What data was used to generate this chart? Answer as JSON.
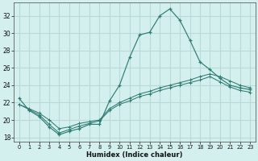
{
  "xlabel": "Humidex (Indice chaleur)",
  "bg_color": "#d4f0ee",
  "grid_color": "#b8dbd8",
  "line_color": "#2d7d72",
  "xlim": [
    -0.5,
    23.5
  ],
  "ylim": [
    17.5,
    33.5
  ],
  "yticks": [
    18,
    20,
    22,
    24,
    26,
    28,
    30,
    32
  ],
  "xticks": [
    0,
    1,
    2,
    3,
    4,
    5,
    6,
    7,
    8,
    9,
    10,
    11,
    12,
    13,
    14,
    15,
    16,
    17,
    18,
    19,
    20,
    21,
    22,
    23
  ],
  "line1_x": [
    0,
    1,
    2,
    3,
    4,
    5,
    6,
    7,
    8,
    9,
    10,
    11,
    12,
    13,
    14,
    15,
    16,
    17,
    18,
    19,
    20,
    21,
    22,
    23
  ],
  "line1_y": [
    22.5,
    21.1,
    20.4,
    19.2,
    18.3,
    18.7,
    19.0,
    19.5,
    19.5,
    22.2,
    24.0,
    27.2,
    29.8,
    30.1,
    32.0,
    32.8,
    31.5,
    29.2,
    26.7,
    25.8,
    24.8,
    24.0,
    23.7,
    23.5
  ],
  "line2_x": [
    0,
    1,
    2,
    3,
    4,
    5,
    6,
    7,
    8,
    9,
    10,
    11,
    12,
    13,
    14,
    15,
    16,
    17,
    18,
    19,
    20,
    21,
    22,
    23
  ],
  "line2_y": [
    21.8,
    21.2,
    20.6,
    19.5,
    18.5,
    18.9,
    19.3,
    19.6,
    19.9,
    21.1,
    21.8,
    22.2,
    22.7,
    23.0,
    23.4,
    23.7,
    24.0,
    24.3,
    24.6,
    25.0,
    24.4,
    23.8,
    23.4,
    23.2
  ],
  "line3_x": [
    0,
    1,
    2,
    3,
    4,
    5,
    6,
    7,
    8,
    9,
    10,
    11,
    12,
    13,
    14,
    15,
    16,
    17,
    18,
    19,
    20,
    21,
    22,
    23
  ],
  "line3_y": [
    21.8,
    21.3,
    20.8,
    20.0,
    19.0,
    19.2,
    19.6,
    19.8,
    20.0,
    21.3,
    22.0,
    22.5,
    23.0,
    23.3,
    23.7,
    24.0,
    24.3,
    24.6,
    25.0,
    25.3,
    25.0,
    24.5,
    24.0,
    23.7
  ]
}
